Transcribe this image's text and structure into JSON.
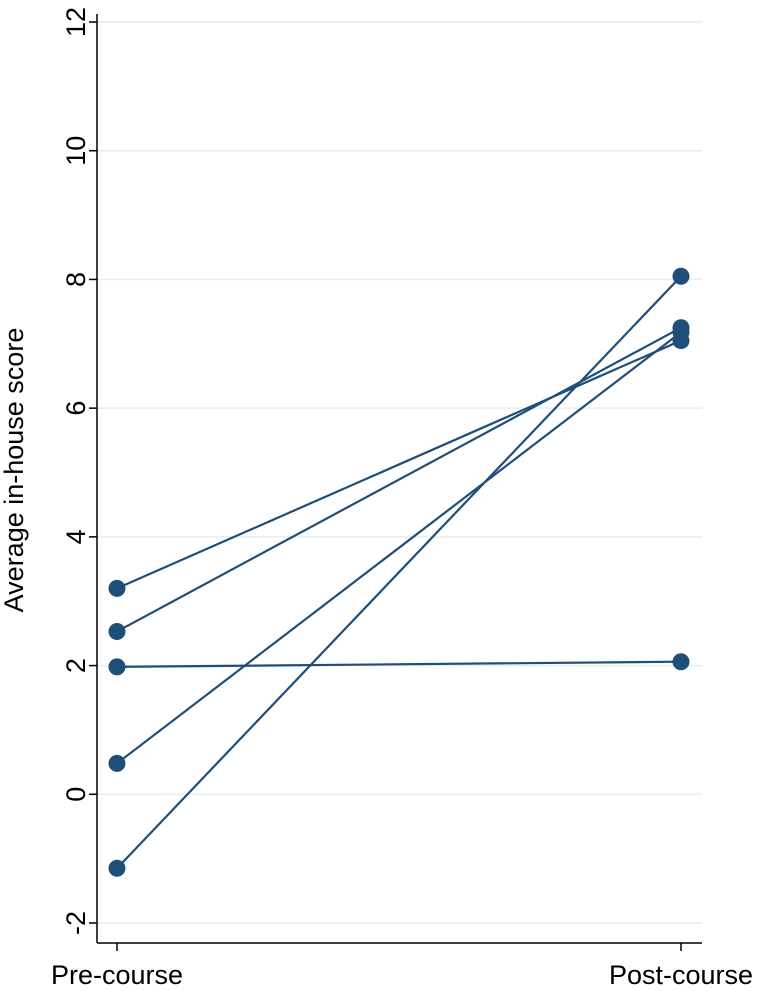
{
  "chart_data": {
    "type": "line",
    "xlabel": "",
    "ylabel": "Average in-house score",
    "categories": [
      "Pre-course",
      "Post-course"
    ],
    "ylim": [
      -2,
      12
    ],
    "yticks": [
      -2,
      0,
      2,
      4,
      6,
      8,
      10,
      12
    ],
    "grid": true,
    "legend": "none",
    "series": [
      {
        "values": [
          3.2,
          7.05
        ]
      },
      {
        "values": [
          2.53,
          7.25
        ]
      },
      {
        "values": [
          1.98,
          2.06
        ]
      },
      {
        "values": [
          0.48,
          7.18
        ]
      },
      {
        "values": [
          -1.15,
          8.05
        ]
      }
    ]
  },
  "colors": {
    "series": "#1f4e79",
    "grid": "#e6eef1",
    "axis": "#000000"
  }
}
